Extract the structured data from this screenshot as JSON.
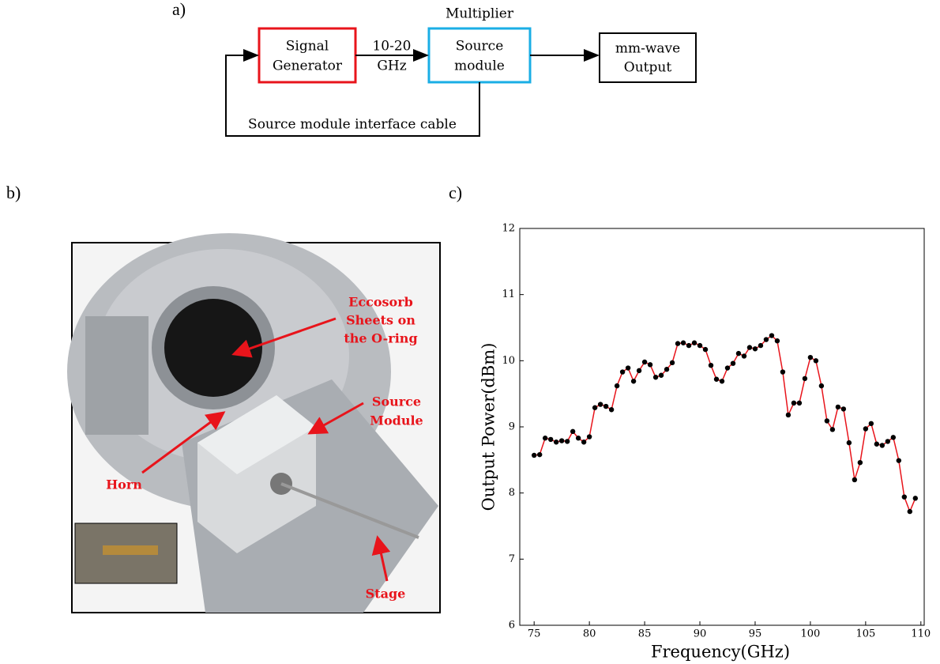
{
  "diagram": {
    "panel_label": "a)",
    "nodes": [
      {
        "lines": [
          "Signal",
          "Generator"
        ]
      },
      {
        "caption": "Multiplier",
        "lines": [
          "Source",
          "module"
        ]
      },
      {
        "lines": [
          "mm-wave",
          "Output"
        ]
      }
    ],
    "edges": [
      {
        "lines": [
          "10-20",
          "GHz"
        ]
      },
      {
        "label": "Source module interface cable"
      }
    ]
  },
  "photo": {
    "panel_label": "b)",
    "annotations": [
      {
        "lines": [
          "Eccosorb",
          "Sheets on",
          "the O-ring"
        ]
      },
      {
        "lines": [
          "Source",
          "Module"
        ]
      },
      {
        "lines": [
          "Horn"
        ]
      },
      {
        "lines": [
          "Stage"
        ]
      }
    ]
  },
  "chart_data": {
    "type": "line",
    "panel_label": "c)",
    "x_label": "Frequency(GHz)",
    "y_label": "Output Power(dBm)",
    "x": [
      75,
      75.5,
      76,
      76.5,
      77,
      77.5,
      78,
      78.5,
      79,
      79.5,
      80,
      80.5,
      81,
      81.5,
      82,
      82.5,
      83,
      83.5,
      84,
      84.5,
      85,
      85.5,
      86,
      86.5,
      87,
      87.5,
      88,
      88.5,
      89,
      89.5,
      90,
      90.5,
      91,
      91.5,
      92,
      92.5,
      93,
      93.5,
      94,
      94.5,
      95,
      95.5,
      96,
      96.5,
      97,
      97.5,
      98,
      98.5,
      99,
      99.5,
      100,
      100.5,
      101,
      101.5,
      102,
      102.5,
      103,
      103.5,
      104,
      104.5,
      105,
      105.5,
      106,
      106.5,
      107,
      107.5,
      108,
      108.5,
      109,
      109.5
    ],
    "series": [
      {
        "color": "#e8141b",
        "marker_color": "#000000",
        "values": [
          8.57,
          8.58,
          8.83,
          8.81,
          8.77,
          8.79,
          8.78,
          8.93,
          8.83,
          8.77,
          8.85,
          9.29,
          9.34,
          9.31,
          9.26,
          9.62,
          9.83,
          9.89,
          9.69,
          9.85,
          9.98,
          9.94,
          9.75,
          9.78,
          9.87,
          9.97,
          10.26,
          10.27,
          10.23,
          10.27,
          10.23,
          10.17,
          9.93,
          9.72,
          9.69,
          9.89,
          9.96,
          10.11,
          10.07,
          10.2,
          10.18,
          10.23,
          10.32,
          10.38,
          10.3,
          9.83,
          9.18,
          9.36,
          9.36,
          9.73,
          10.05,
          10.0,
          9.62,
          9.09,
          8.96,
          9.3,
          9.27,
          8.76,
          8.2,
          8.46,
          8.97,
          9.05,
          8.74,
          8.72,
          8.78,
          8.84,
          8.49,
          7.94,
          7.72,
          7.92
        ]
      }
    ],
    "xlim": [
      73.7,
      110.3
    ],
    "ylim": [
      6,
      12
    ],
    "xticks": [
      75,
      80,
      85,
      90,
      95,
      100,
      105,
      110
    ],
    "yticks": [
      6,
      7,
      8,
      9,
      10,
      11,
      12
    ]
  }
}
